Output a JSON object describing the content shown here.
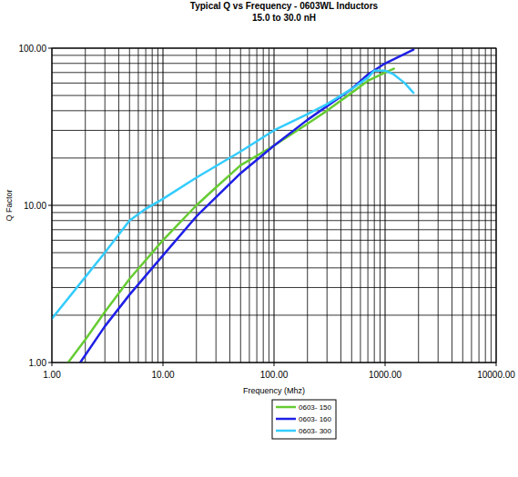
{
  "chart_data": {
    "type": "line",
    "title": "Typical Q vs Frequency - 0603WL Inductors",
    "subtitle": "15.0 to 30.0 nH",
    "x_label": "Frequency (Mhz)",
    "y_label": "Q Factor",
    "log": true,
    "grid": true,
    "legend": "bottom",
    "xlim": [
      1,
      10000
    ],
    "ylim": [
      1,
      100
    ],
    "xticks": [
      {
        "value": 1,
        "label": "1.00"
      },
      {
        "value": 10,
        "label": "10.00"
      },
      {
        "value": 100,
        "label": "100.00"
      },
      {
        "value": 1000,
        "label": "1000.00"
      },
      {
        "value": 10000,
        "label": "10000.00"
      }
    ],
    "yticks": [
      {
        "value": 1,
        "label": "1.00"
      },
      {
        "value": 10,
        "label": "10.00"
      },
      {
        "value": 100,
        "label": "100.00"
      }
    ],
    "series": [
      {
        "name": "0603- 150",
        "color": "#66cc33",
        "x": [
          1.4,
          2,
          3,
          5,
          10,
          20,
          30,
          50,
          100,
          200,
          300,
          500,
          700,
          1000,
          1200
        ],
        "values": [
          1.0,
          1.4,
          2.1,
          3.4,
          6.0,
          10,
          13,
          18,
          24,
          33,
          40,
          52,
          62,
          70,
          74
        ]
      },
      {
        "name": "0603- 160",
        "color": "#1f1fe6",
        "x": [
          1.8,
          3,
          5,
          10,
          20,
          50,
          100,
          200,
          500,
          700,
          1000,
          1500,
          1800
        ],
        "values": [
          1.0,
          1.7,
          2.7,
          4.8,
          8.5,
          16,
          24,
          35,
          55,
          68,
          80,
          92,
          98
        ]
      },
      {
        "name": "0603- 300",
        "color": "#33ccff",
        "x": [
          1,
          2,
          3,
          5,
          7,
          10,
          20,
          50,
          100,
          200,
          300,
          500,
          700,
          800,
          1000,
          1200,
          1500,
          1800
        ],
        "values": [
          1.9,
          3.5,
          5,
          8,
          9.5,
          11,
          15,
          22,
          30,
          38,
          44,
          55,
          65,
          72,
          72,
          68,
          60,
          52
        ]
      }
    ]
  }
}
